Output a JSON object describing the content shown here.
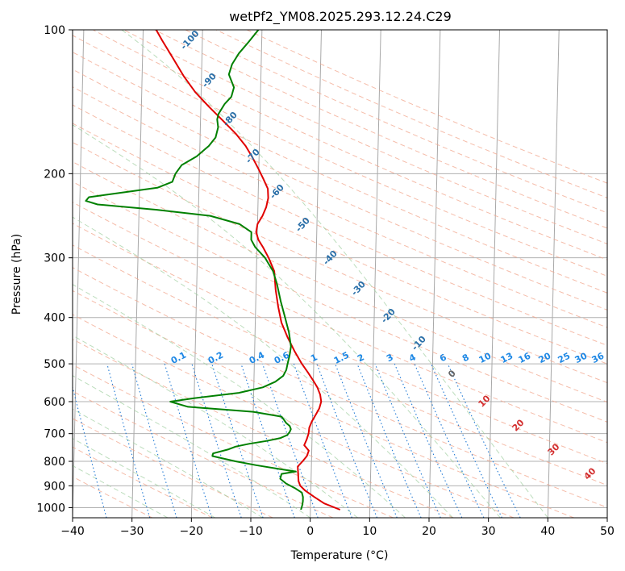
{
  "chart_data": {
    "type": "line",
    "title": "wetPf2_YM08.2025.293.12.24.C29",
    "xlabel": "Temperature (°C)",
    "ylabel": "Pressure (hPa)",
    "xlim": [
      -40,
      50
    ],
    "ylim": [
      1050,
      100
    ],
    "y_scale": "log",
    "skew": "skew-T",
    "grid": true,
    "x_ticks": [
      -40,
      -30,
      -20,
      -10,
      0,
      10,
      20,
      30,
      40,
      50
    ],
    "x_tick_labels": [
      "−40",
      "−30",
      "−20",
      "−10",
      "0",
      "10",
      "20",
      "30",
      "40",
      "50"
    ],
    "y_ticks": [
      1000,
      900,
      800,
      700,
      600,
      500,
      400,
      300,
      200,
      100
    ],
    "y_tick_labels": [
      "1000",
      "900",
      "800",
      "700",
      "600",
      "500",
      "400",
      "300",
      "200",
      "100"
    ],
    "series": [
      {
        "color": "#e00000",
        "points": [
          [
            1010,
            5.0
          ],
          [
            980,
            2.3
          ],
          [
            950,
            0.6
          ],
          [
            920,
            -1.0
          ],
          [
            900,
            -1.8
          ],
          [
            880,
            -2.1
          ],
          [
            850,
            -2.2
          ],
          [
            820,
            -2.3
          ],
          [
            800,
            -1.5
          ],
          [
            780,
            -0.8
          ],
          [
            760,
            -0.5
          ],
          [
            740,
            -1.3
          ],
          [
            720,
            -0.9
          ],
          [
            700,
            -0.6
          ],
          [
            680,
            -0.5
          ],
          [
            660,
            -0.1
          ],
          [
            640,
            0.5
          ],
          [
            620,
            1.1
          ],
          [
            600,
            1.4
          ],
          [
            580,
            1.2
          ],
          [
            560,
            0.7
          ],
          [
            540,
            -0.1
          ],
          [
            520,
            -1.0
          ],
          [
            500,
            -2.0
          ],
          [
            470,
            -3.3
          ],
          [
            440,
            -4.5
          ],
          [
            410,
            -5.6
          ],
          [
            380,
            -6.2
          ],
          [
            350,
            -6.7
          ],
          [
            320,
            -7.0
          ],
          [
            300,
            -8.0
          ],
          [
            285,
            -9.0
          ],
          [
            275,
            -9.8
          ],
          [
            265,
            -10.2
          ],
          [
            255,
            -10.0
          ],
          [
            245,
            -9.2
          ],
          [
            235,
            -8.6
          ],
          [
            225,
            -8.3
          ],
          [
            215,
            -8.4
          ],
          [
            205,
            -9.2
          ],
          [
            195,
            -10.1
          ],
          [
            185,
            -11.1
          ],
          [
            175,
            -12.3
          ],
          [
            165,
            -14.0
          ],
          [
            155,
            -16.2
          ],
          [
            145,
            -18.6
          ],
          [
            135,
            -21.0
          ],
          [
            125,
            -23.0
          ],
          [
            115,
            -24.8
          ],
          [
            105,
            -26.8
          ],
          [
            100,
            -27.8
          ]
        ]
      },
      {
        "color": "#008000",
        "points": [
          [
            1010,
            -1.6
          ],
          [
            990,
            -1.4
          ],
          [
            970,
            -1.3
          ],
          [
            950,
            -1.3
          ],
          [
            930,
            -1.5
          ],
          [
            910,
            -2.7
          ],
          [
            890,
            -4.2
          ],
          [
            870,
            -5.2
          ],
          [
            850,
            -5.0
          ],
          [
            840,
            -2.6
          ],
          [
            830,
            -5.4
          ],
          [
            815,
            -9.3
          ],
          [
            800,
            -12.8
          ],
          [
            780,
            -16.7
          ],
          [
            770,
            -16.6
          ],
          [
            755,
            -14.0
          ],
          [
            745,
            -12.8
          ],
          [
            735,
            -10.5
          ],
          [
            725,
            -7.6
          ],
          [
            715,
            -5.3
          ],
          [
            705,
            -4.2
          ],
          [
            695,
            -3.8
          ],
          [
            685,
            -3.6
          ],
          [
            675,
            -3.8
          ],
          [
            665,
            -4.4
          ],
          [
            655,
            -4.8
          ],
          [
            645,
            -5.2
          ],
          [
            630,
            -10.0
          ],
          [
            615,
            -21.0
          ],
          [
            600,
            -24.0
          ],
          [
            590,
            -20.0
          ],
          [
            575,
            -12.5
          ],
          [
            560,
            -8.5
          ],
          [
            545,
            -6.4
          ],
          [
            530,
            -5.1
          ],
          [
            515,
            -4.6
          ],
          [
            500,
            -4.4
          ],
          [
            480,
            -4.1
          ],
          [
            460,
            -3.9
          ],
          [
            430,
            -4.3
          ],
          [
            400,
            -5.0
          ],
          [
            370,
            -5.8
          ],
          [
            340,
            -6.5
          ],
          [
            320,
            -7.2
          ],
          [
            300,
            -8.6
          ],
          [
            285,
            -10.3
          ],
          [
            275,
            -11.0
          ],
          [
            265,
            -11.0
          ],
          [
            255,
            -13.0
          ],
          [
            245,
            -18.0
          ],
          [
            238,
            -27.0
          ],
          [
            232,
            -37.0
          ],
          [
            228,
            -39.0
          ],
          [
            224,
            -38.5
          ],
          [
            220,
            -34.0
          ],
          [
            214,
            -27.0
          ],
          [
            208,
            -24.5
          ],
          [
            200,
            -24.0
          ],
          [
            192,
            -23.0
          ],
          [
            184,
            -20.5
          ],
          [
            175,
            -18.5
          ],
          [
            168,
            -17.4
          ],
          [
            160,
            -17.0
          ],
          [
            154,
            -17.2
          ],
          [
            150,
            -17.0
          ],
          [
            143,
            -16.0
          ],
          [
            138,
            -14.9
          ],
          [
            132,
            -14.5
          ],
          [
            124,
            -15.4
          ],
          [
            118,
            -14.9
          ],
          [
            112,
            -13.8
          ],
          [
            106,
            -12.2
          ],
          [
            100,
            -10.6
          ]
        ]
      }
    ],
    "dry_adiabat_labels": [
      "-100",
      "-90",
      "-80",
      "-70",
      "-60",
      "-50",
      "-40",
      "-30",
      "-20",
      "-10"
    ],
    "mixing_ratio_labels": [
      "0.1",
      "0.2",
      "0.4",
      "0.6",
      "1",
      "1.5",
      "2",
      "3",
      "4",
      "6",
      "8",
      "10",
      "13",
      "16",
      "20",
      "25",
      "30",
      "36"
    ],
    "moist_adiabat_labels": [
      "0",
      "10",
      "20",
      "30",
      "40"
    ]
  }
}
